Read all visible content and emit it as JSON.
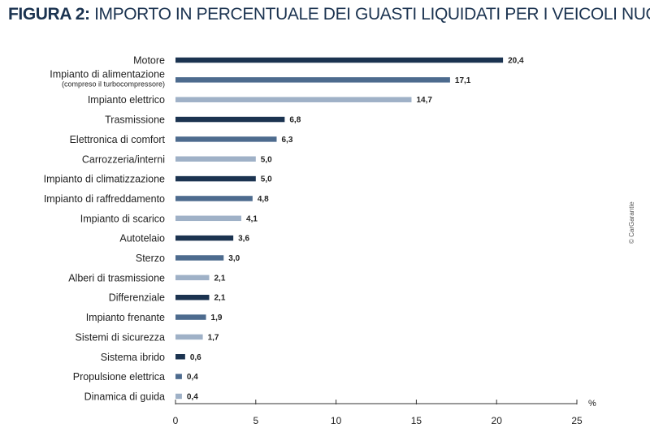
{
  "title_prefix": "FIGURA 2:",
  "title_text": "IMPORTO IN PERCENTUALE DEI GUASTI LIQUIDATI PER I VEICOLI NUOVI",
  "credit": "© CarGarantie",
  "colors": {
    "dark": "#1b3350",
    "medium": "#4d6b8e",
    "light": "#9fb1c7",
    "title": "#1b3350"
  },
  "chart_data": {
    "type": "bar",
    "orientation": "horizontal",
    "categories": [
      "Motore",
      "Impianto di alimentazione",
      "Impianto elettrico",
      "Trasmissione",
      "Elettronica di comfort",
      "Carrozzeria/interni",
      "Impianto di climatizzazione",
      "Impianto di raffreddamento",
      "Impianto di scarico",
      "Autotelaio",
      "Sterzo",
      "Alberi di trasmissione",
      "Differenziale",
      "Impianto frenante",
      "Sistemi di sicurezza",
      "Sistema ibrido",
      "Propulsione elettrica",
      "Dinamica di guida"
    ],
    "category_notes": [
      "",
      "(compreso il turbocompressore)",
      "",
      "",
      "",
      "",
      "",
      "",
      "",
      "",
      "",
      "",
      "",
      "",
      "",
      "",
      "",
      ""
    ],
    "values": [
      20.4,
      17.1,
      14.7,
      6.8,
      6.3,
      5.0,
      5.0,
      4.8,
      4.1,
      3.6,
      3.0,
      2.1,
      2.1,
      1.9,
      1.7,
      0.6,
      0.4,
      0.4
    ],
    "value_labels": [
      "20,4",
      "17,1",
      "14,7",
      "6,8",
      "6,3",
      "5,0",
      "5,0",
      "4,8",
      "4,1",
      "3,6",
      "3,0",
      "2,1",
      "2,1",
      "1,9",
      "1,7",
      "0,6",
      "0,4",
      "0,4"
    ],
    "bar_shades": [
      "dark",
      "medium",
      "light",
      "dark",
      "medium",
      "light",
      "dark",
      "medium",
      "light",
      "dark",
      "medium",
      "light",
      "dark",
      "medium",
      "light",
      "dark",
      "medium",
      "light"
    ],
    "xlim": [
      0,
      25
    ],
    "xticks": [
      0,
      5,
      10,
      15,
      20,
      25
    ],
    "xunit": "%",
    "grid": false
  }
}
